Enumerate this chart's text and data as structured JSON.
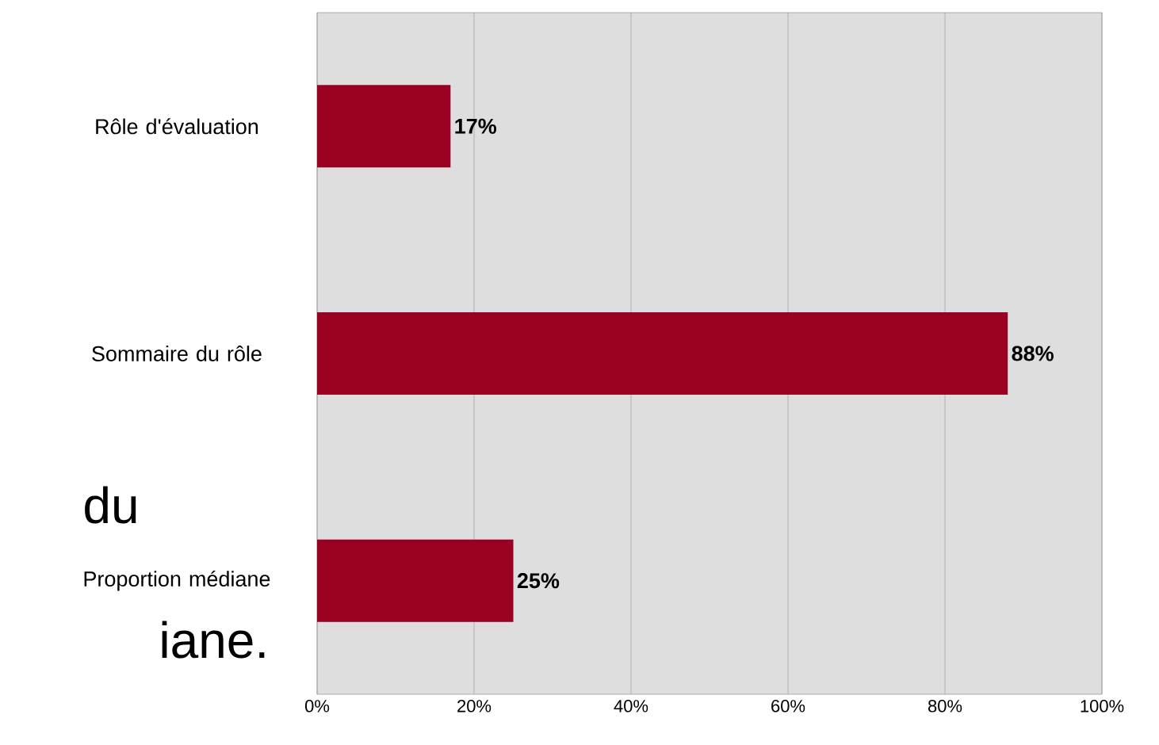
{
  "chart_data": {
    "type": "bar",
    "orientation": "horizontal",
    "categories": [
      "Rôle d'évaluation",
      "Sommaire du rôle",
      "Proportion médiane"
    ],
    "values": [
      17,
      88,
      25
    ],
    "value_labels": [
      "17%",
      "88%",
      "25%"
    ],
    "color": "#990021",
    "xlim": [
      0,
      100
    ],
    "xticks": [
      {
        "value": 0,
        "label": "0%"
      },
      {
        "value": 20,
        "label": "20%"
      },
      {
        "value": 40,
        "label": "40%"
      },
      {
        "value": 60,
        "label": "60%"
      },
      {
        "value": 80,
        "label": "80%"
      },
      {
        "value": 100,
        "label": "100%"
      }
    ],
    "grid": "x",
    "annotations": [
      "du",
      "iane."
    ]
  }
}
